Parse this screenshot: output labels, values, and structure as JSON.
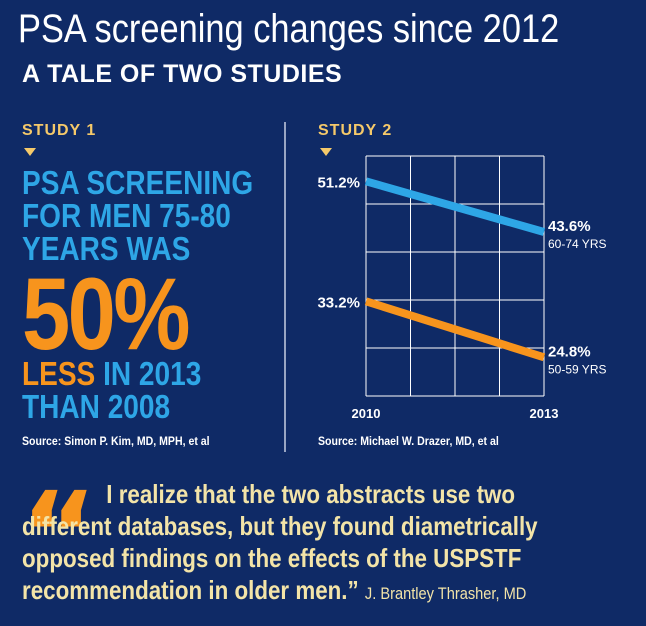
{
  "header": {
    "title": "PSA screening changes since 2012",
    "subtitle": "A TALE OF TWO STUDIES"
  },
  "study1": {
    "label": "STUDY 1",
    "line1": "PSA SCREENING",
    "line2": "FOR MEN 75-80",
    "line3": "YEARS WAS",
    "big_number": "50%",
    "less_word": "LESS",
    "line4_rest": " IN 2013",
    "line5": "THAN 2008",
    "source": "Source: Simon P. Kim, MD, MPH, et al"
  },
  "study2": {
    "label": "STUDY 2",
    "source": "Source: Michael W. Drazer, MD, et al"
  },
  "chart_data": {
    "type": "line",
    "x": [
      "2010",
      "2013"
    ],
    "series": [
      {
        "name": "60-74 YRS",
        "values": [
          51.2,
          43.6
        ],
        "labels": [
          "51.2%",
          "43.6%"
        ],
        "color": "#2ea6e6"
      },
      {
        "name": "50-59 YRS",
        "values": [
          33.2,
          24.8
        ],
        "labels": [
          "33.2%",
          "24.8%"
        ],
        "color": "#f7941d"
      }
    ],
    "ylim": [
      19,
      55
    ],
    "grid": true
  },
  "quote": {
    "text": "I realize that the two abstracts use two different databases, but they found diametrically opposed findings on the effects of the USPSTF recommendation in older men.”",
    "attribution": "J. Brantley Thrasher, MD"
  },
  "colors": {
    "background": "#0f2a66",
    "accent_blue": "#2ea6e6",
    "accent_orange": "#f7941d",
    "label_gold": "#f5c96a",
    "quote_text": "#f3e4a8"
  }
}
